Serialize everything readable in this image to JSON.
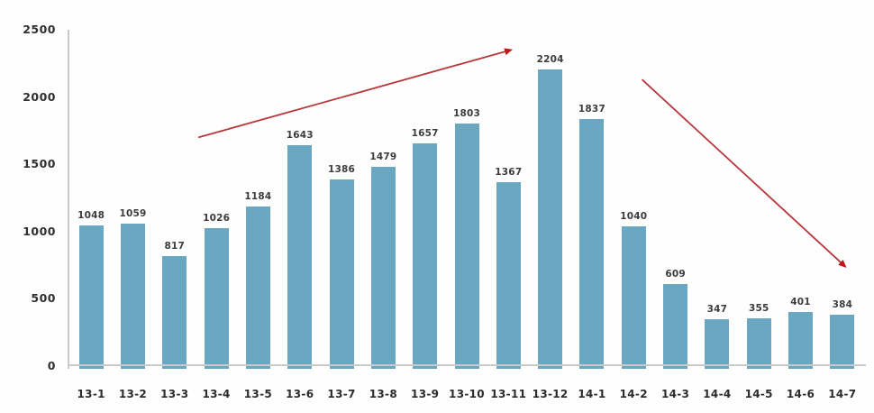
{
  "chart_data": {
    "type": "bar",
    "title": "",
    "xlabel": "",
    "ylabel": "",
    "categories": [
      "13-1",
      "13-2",
      "13-3",
      "13-4",
      "13-5",
      "13-6",
      "13-7",
      "13-8",
      "13-9",
      "13-10",
      "13-11",
      "13-12",
      "14-1",
      "14-2",
      "14-3",
      "14-4",
      "14-5",
      "14-6",
      "14-7"
    ],
    "values": [
      1048,
      1059,
      817,
      1026,
      1184,
      1643,
      1386,
      1479,
      1657,
      1803,
      1367,
      2204,
      1837,
      1040,
      609,
      347,
      355,
      401,
      384
    ],
    "ylim": [
      0,
      2500
    ],
    "ytick_labels": [
      "0",
      "500",
      "1000",
      "1500",
      "2000",
      "2500"
    ],
    "ytick_values": [
      0,
      500,
      1000,
      1500,
      2000,
      2500
    ],
    "grid": false,
    "legend": "none",
    "bar_color": "#69A7C2",
    "value_label_color": "#3C3C3C",
    "tick_label_color": "#2F2F2F",
    "axis_line_color": "#C9C9C9",
    "background_color": "#FFFFFF",
    "annotations": [
      {
        "name": "rising-trend-arrow",
        "type": "arrow",
        "color": "#B5373B",
        "head_color": "#C01818",
        "from": {
          "x_slot": 3.07,
          "value": 1700
        },
        "to": {
          "x_slot": 10.56,
          "value": 2350
        }
      },
      {
        "name": "falling-trend-arrow",
        "type": "arrow",
        "color": "#B5373B",
        "head_color": "#C01818",
        "from": {
          "x_slot": 13.7,
          "value": 2130
        },
        "to": {
          "x_slot": 18.57,
          "value": 740
        }
      }
    ]
  }
}
